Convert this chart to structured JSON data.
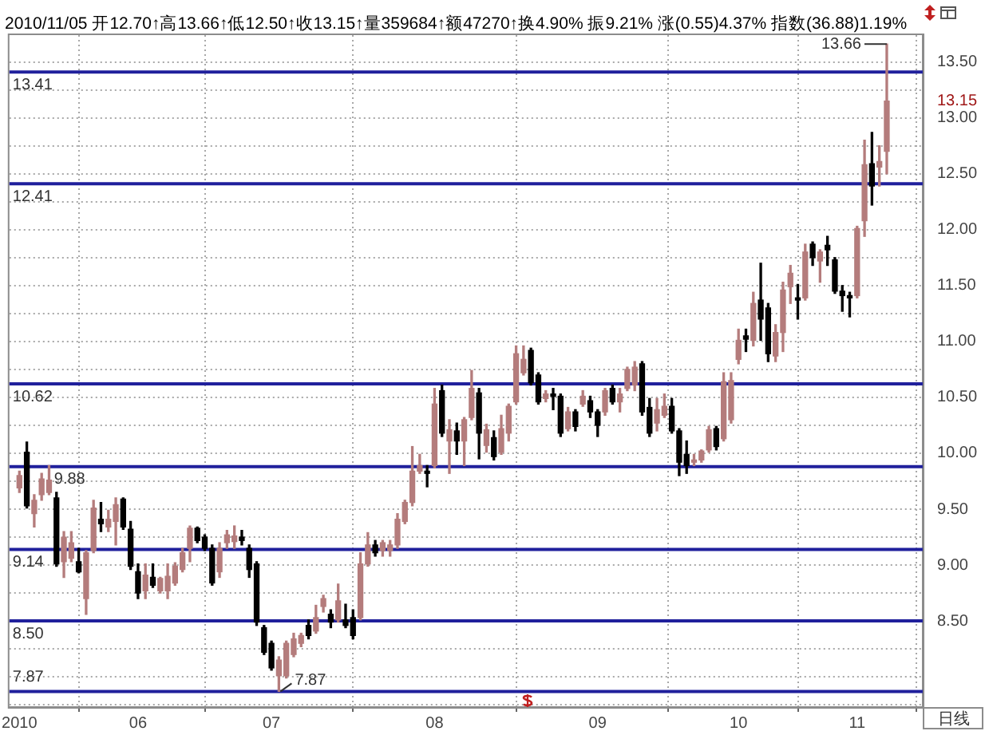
{
  "chart_data": {
    "type": "candlestick",
    "title": "2010/11/05 开12.70↑高13.66↑低12.50↑收13.15↑量359684↑额47270↑换4.90% 振9.21% 涨(0.55)4.37% 指数(36.88)1.19%",
    "categories": [
      "2010",
      null,
      null,
      null,
      null,
      null,
      null,
      null,
      null,
      null,
      null,
      null,
      null,
      null,
      null,
      null,
      "06",
      null,
      null,
      null,
      null,
      null,
      null,
      null,
      null,
      null,
      null,
      null,
      null,
      null,
      null,
      null,
      null,
      null,
      "07",
      null,
      null,
      null,
      null,
      null,
      null,
      null,
      null,
      null,
      null,
      null,
      null,
      null,
      null,
      null,
      null,
      null,
      null,
      null,
      null,
      null,
      "08",
      null,
      null,
      null,
      null,
      null,
      null,
      null,
      null,
      null,
      null,
      null,
      null,
      null,
      null,
      null,
      null,
      null,
      null,
      null,
      null,
      null,
      "09",
      null,
      null,
      null,
      null,
      null,
      null,
      null,
      null,
      null,
      null,
      null,
      null,
      null,
      null,
      null,
      null,
      null,
      null,
      "10",
      null,
      null,
      null,
      null,
      null,
      null,
      null,
      null,
      null,
      null,
      null,
      null,
      null,
      null,
      null,
      "11",
      null,
      null,
      null,
      null
    ],
    "ohlc": [
      [
        9.69,
        9.84,
        9.65,
        9.8
      ],
      [
        10.01,
        10.1,
        9.51,
        9.53
      ],
      [
        9.46,
        9.63,
        9.34,
        9.58
      ],
      [
        9.63,
        9.82,
        9.58,
        9.77
      ],
      [
        9.65,
        9.89,
        9.63,
        9.76
      ],
      [
        9.6,
        9.65,
        8.99,
        9.01
      ],
      [
        9.03,
        9.3,
        8.89,
        9.25
      ],
      [
        9.06,
        9.3,
        9.03,
        9.2
      ],
      [
        9.03,
        9.15,
        8.93,
        8.94
      ],
      [
        8.7,
        9.13,
        8.56,
        9.11
      ],
      [
        9.13,
        9.58,
        9.11,
        9.51
      ],
      [
        9.41,
        9.56,
        9.3,
        9.37
      ],
      [
        9.34,
        9.49,
        9.3,
        9.41
      ],
      [
        9.39,
        9.6,
        9.18,
        9.54
      ],
      [
        9.59,
        9.6,
        9.32,
        9.34
      ],
      [
        9.32,
        9.39,
        8.96,
        8.99
      ],
      [
        8.94,
        9.01,
        8.7,
        8.75
      ],
      [
        8.77,
        9.01,
        8.7,
        8.91
      ],
      [
        8.89,
        9.01,
        8.8,
        8.82
      ],
      [
        8.77,
        8.89,
        8.75,
        8.88
      ],
      [
        8.77,
        9.01,
        8.7,
        8.9
      ],
      [
        8.84,
        9.02,
        8.82,
        8.99
      ],
      [
        8.96,
        9.15,
        8.94,
        9.11
      ],
      [
        9.15,
        9.35,
        9.03,
        9.33
      ],
      [
        9.33,
        9.34,
        9.2,
        9.22
      ],
      [
        9.25,
        9.27,
        9.13,
        9.15
      ],
      [
        9.15,
        9.18,
        8.82,
        8.84
      ],
      [
        8.94,
        9.2,
        8.89,
        9.15
      ],
      [
        9.2,
        9.31,
        9.15,
        9.27
      ],
      [
        9.21,
        9.35,
        9.15,
        9.26
      ],
      [
        9.25,
        9.31,
        9.18,
        9.22
      ],
      [
        9.15,
        9.18,
        8.89,
        8.96
      ],
      [
        9.01,
        9.03,
        8.46,
        8.49
      ],
      [
        8.44,
        8.46,
        8.2,
        8.22
      ],
      [
        8.3,
        8.32,
        8.06,
        8.08
      ],
      [
        8.01,
        8.18,
        7.87,
        8.15
      ],
      [
        8.01,
        8.32,
        7.99,
        8.3
      ],
      [
        8.2,
        8.39,
        8.18,
        8.34
      ],
      [
        8.3,
        8.39,
        8.27,
        8.37
      ],
      [
        8.46,
        8.51,
        8.34,
        8.37
      ],
      [
        8.41,
        8.64,
        8.39,
        8.53
      ],
      [
        8.63,
        8.73,
        8.58,
        8.7
      ],
      [
        8.56,
        8.6,
        8.44,
        8.49
      ],
      [
        8.51,
        8.83,
        8.49,
        8.68
      ],
      [
        8.51,
        8.65,
        8.44,
        8.46
      ],
      [
        8.53,
        8.6,
        8.34,
        8.37
      ],
      [
        8.53,
        9.11,
        8.51,
        9.01
      ],
      [
        9.01,
        9.29,
        8.99,
        9.18
      ],
      [
        9.18,
        9.22,
        9.08,
        9.11
      ],
      [
        9.13,
        9.22,
        9.08,
        9.2
      ],
      [
        9.13,
        9.22,
        9.08,
        9.18
      ],
      [
        9.18,
        9.46,
        9.15,
        9.41
      ],
      [
        9.39,
        9.58,
        9.37,
        9.56
      ],
      [
        9.56,
        10.06,
        9.53,
        9.84
      ],
      [
        9.84,
        9.99,
        9.82,
        9.89
      ],
      [
        9.84,
        9.89,
        9.7,
        9.82
      ],
      [
        9.89,
        10.58,
        9.87,
        10.44
      ],
      [
        10.56,
        10.61,
        10.15,
        10.18
      ],
      [
        10.11,
        10.3,
        9.82,
        10.21
      ],
      [
        10.2,
        10.27,
        9.99,
        10.11
      ],
      [
        10.11,
        10.32,
        9.89,
        10.3
      ],
      [
        10.32,
        10.74,
        10.3,
        10.58
      ],
      [
        10.54,
        10.58,
        9.95,
        10.18
      ],
      [
        10.07,
        10.26,
        10.01,
        10.21
      ],
      [
        10.14,
        10.2,
        9.94,
        9.97
      ],
      [
        10.01,
        10.34,
        9.99,
        10.22
      ],
      [
        10.18,
        10.44,
        10.11,
        10.42
      ],
      [
        10.46,
        10.96,
        10.44,
        10.89
      ],
      [
        10.72,
        10.96,
        10.7,
        10.84
      ],
      [
        10.92,
        10.94,
        10.61,
        10.63
      ],
      [
        10.7,
        10.72,
        10.44,
        10.46
      ],
      [
        10.49,
        10.56,
        10.46,
        10.53
      ],
      [
        10.53,
        10.58,
        10.39,
        10.51
      ],
      [
        10.51,
        10.53,
        10.15,
        10.18
      ],
      [
        10.22,
        10.41,
        10.2,
        10.37
      ],
      [
        10.37,
        10.39,
        10.2,
        10.24
      ],
      [
        10.44,
        10.56,
        10.42,
        10.51
      ],
      [
        10.47,
        10.51,
        10.32,
        10.37
      ],
      [
        10.37,
        10.39,
        10.15,
        10.25
      ],
      [
        10.37,
        10.58,
        10.34,
        10.56
      ],
      [
        10.58,
        10.61,
        10.44,
        10.46
      ],
      [
        10.46,
        10.58,
        10.37,
        10.53
      ],
      [
        10.58,
        10.77,
        10.56,
        10.75
      ],
      [
        10.61,
        10.82,
        10.56,
        10.77
      ],
      [
        10.8,
        10.82,
        10.34,
        10.37
      ],
      [
        10.41,
        10.49,
        10.15,
        10.18
      ],
      [
        10.27,
        10.49,
        10.2,
        10.39
      ],
      [
        10.34,
        10.53,
        10.32,
        10.42
      ],
      [
        10.42,
        10.49,
        10.18,
        10.2
      ],
      [
        10.2,
        10.22,
        9.8,
        9.92
      ],
      [
        9.99,
        10.11,
        9.82,
        9.89
      ],
      [
        9.92,
        9.99,
        9.89,
        9.94
      ],
      [
        9.94,
        10.03,
        9.92,
        10.02
      ],
      [
        10.03,
        10.24,
        10.01,
        10.21
      ],
      [
        10.22,
        10.24,
        10.03,
        10.06
      ],
      [
        10.13,
        10.72,
        10.11,
        10.64
      ],
      [
        10.3,
        10.72,
        10.27,
        10.65
      ],
      [
        10.84,
        11.11,
        10.8,
        11.01
      ],
      [
        11.05,
        11.11,
        10.91,
        11.02
      ],
      [
        11.01,
        11.44,
        10.96,
        11.34
      ],
      [
        11.37,
        11.7,
        11.01,
        11.2
      ],
      [
        11.3,
        11.34,
        10.82,
        10.89
      ],
      [
        10.87,
        11.15,
        10.82,
        11.08
      ],
      [
        11.08,
        11.53,
        10.91,
        11.46
      ],
      [
        11.49,
        11.68,
        11.34,
        11.61
      ],
      [
        11.39,
        11.51,
        11.2,
        11.37
      ],
      [
        11.39,
        11.87,
        11.37,
        11.8
      ],
      [
        11.87,
        11.89,
        11.68,
        11.75
      ],
      [
        11.72,
        11.82,
        11.53,
        11.8
      ],
      [
        11.86,
        11.94,
        11.68,
        11.82
      ],
      [
        11.73,
        11.75,
        11.43,
        11.45
      ],
      [
        11.45,
        11.5,
        11.27,
        11.41
      ],
      [
        11.41,
        11.44,
        11.22,
        11.39
      ],
      [
        11.41,
        12.03,
        11.39,
        12.01
      ],
      [
        12.08,
        12.8,
        11.94,
        12.58
      ],
      [
        12.59,
        12.87,
        12.22,
        12.39
      ],
      [
        12.56,
        12.75,
        12.39,
        12.61
      ],
      [
        12.7,
        13.66,
        12.5,
        13.15
      ]
    ],
    "colors": [
      "#b47c7c",
      "#000000",
      "#b47c7c",
      "#b47c7c",
      "#b47c7c",
      "#000000",
      "#b47c7c",
      "#b47c7c",
      "#000000",
      "#b47c7c",
      "#b47c7c",
      "#000000",
      "#b47c7c",
      "#b47c7c",
      "#000000",
      "#000000",
      "#000000",
      "#b47c7c",
      "#000000",
      "#b47c7c",
      "#b47c7c",
      "#b47c7c",
      "#b47c7c",
      "#b47c7c",
      "#000000",
      "#000000",
      "#000000",
      "#b47c7c",
      "#b47c7c",
      "#b47c7c",
      "#000000",
      "#000000",
      "#000000",
      "#000000",
      "#000000",
      "#b47c7c",
      "#b47c7c",
      "#b47c7c",
      "#b47c7c",
      "#000000",
      "#b47c7c",
      "#b47c7c",
      "#000000",
      "#b47c7c",
      "#000000",
      "#000000",
      "#b47c7c",
      "#b47c7c",
      "#000000",
      "#b47c7c",
      "#b47c7c",
      "#b47c7c",
      "#b47c7c",
      "#b47c7c",
      "#b47c7c",
      "#000000",
      "#b47c7c",
      "#000000",
      "#b47c7c",
      "#000000",
      "#b47c7c",
      "#b47c7c",
      "#000000",
      "#b47c7c",
      "#000000",
      "#b47c7c",
      "#b47c7c",
      "#b47c7c",
      "#b47c7c",
      "#000000",
      "#000000",
      "#b47c7c",
      "#000000",
      "#000000",
      "#b47c7c",
      "#000000",
      "#b47c7c",
      "#000000",
      "#000000",
      "#b47c7c",
      "#000000",
      "#b47c7c",
      "#b47c7c",
      "#b47c7c",
      "#000000",
      "#000000",
      "#b47c7c",
      "#b47c7c",
      "#000000",
      "#000000",
      "#000000",
      "#b47c7c",
      "#b47c7c",
      "#b47c7c",
      "#000000",
      "#b47c7c",
      "#b47c7c",
      "#b47c7c",
      "#000000",
      "#b47c7c",
      "#000000",
      "#000000",
      "#b47c7c",
      "#b47c7c",
      "#b47c7c",
      "#000000",
      "#b47c7c",
      "#000000",
      "#b47c7c",
      "#000000",
      "#000000",
      "#000000",
      "#000000",
      "#b47c7c",
      "#b47c7c",
      "#000000",
      "#b47c7c",
      "#b47c7c"
    ],
    "ylim": [
      7.73,
      13.74
    ],
    "yticks": [
      {
        "value": 7.75,
        "label": null
      },
      {
        "value": 8,
        "label": null
      },
      {
        "value": 8.25,
        "label": null
      },
      {
        "value": 8.5,
        "label": "8.50"
      },
      {
        "value": 8.75,
        "label": null
      },
      {
        "value": 9,
        "label": "9.00"
      },
      {
        "value": 9.25,
        "label": null
      },
      {
        "value": 9.5,
        "label": "9.50"
      },
      {
        "value": 9.75,
        "label": null
      },
      {
        "value": 10,
        "label": "10.00"
      },
      {
        "value": 10.25,
        "label": null
      },
      {
        "value": 10.5,
        "label": "10.50"
      },
      {
        "value": 10.75,
        "label": null
      },
      {
        "value": 11,
        "label": "11.00"
      },
      {
        "value": 11.25,
        "label": null
      },
      {
        "value": 11.5,
        "label": "11.50"
      },
      {
        "value": 11.75,
        "label": null
      },
      {
        "value": 12,
        "label": "12.00"
      },
      {
        "value": 12.25,
        "label": null
      },
      {
        "value": 12.5,
        "label": "12.50"
      },
      {
        "value": 12.75,
        "label": null
      },
      {
        "value": 13,
        "label": "13.00"
      },
      {
        "value": 13.25,
        "label": null
      },
      {
        "value": 13.5,
        "label": "13.50"
      }
    ],
    "ref_lines": [
      {
        "axis": "y",
        "value": 13.41,
        "label": "13.41",
        "color": "#20209c"
      },
      {
        "axis": "y",
        "value": 12.41,
        "label": "12.41",
        "color": "#20209c"
      },
      {
        "axis": "y",
        "value": 10.62,
        "label": "10.62",
        "color": "#20209c"
      },
      {
        "axis": "y",
        "value": 9.88,
        "label": "9.88",
        "color": "#20209c"
      },
      {
        "axis": "y",
        "value": 9.14,
        "label": "9.14",
        "color": "#20209c"
      },
      {
        "axis": "y",
        "value": 8.5,
        "label": "8.50",
        "color": "#20209c"
      },
      {
        "axis": "y",
        "value": 7.87,
        "label": "7.87",
        "color": "#20209c"
      }
    ],
    "annotations": [
      "13.66",
      "7.87",
      "13.15",
      "日线"
    ],
    "grid": true
  }
}
